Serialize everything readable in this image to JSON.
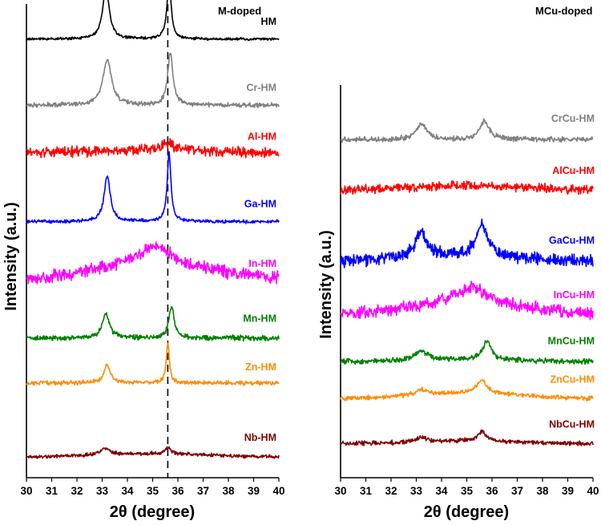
{
  "chart_data": [
    {
      "type": "line",
      "title": "M-doped",
      "xlabel": "2θ (degree)",
      "ylabel": "Intensity (a.u.)",
      "xlim": [
        30,
        40
      ],
      "x_ticks": [
        30,
        31,
        32,
        33,
        34,
        35,
        36,
        37,
        38,
        39,
        40
      ],
      "reference_line_x": 35.6,
      "grid": false,
      "series": [
        {
          "name": "HM",
          "color": "#000000",
          "offset": 8.2,
          "peaks": [
            {
              "x": 33.15,
              "height": 0.95,
              "width": 0.32
            },
            {
              "x": 35.65,
              "height": 1.1,
              "width": 0.2
            }
          ],
          "hump": 0,
          "noise": 0.03
        },
        {
          "name": "Cr-HM",
          "color": "#808080",
          "offset": 6.95,
          "peaks": [
            {
              "x": 33.2,
              "height": 0.85,
              "width": 0.42
            },
            {
              "x": 35.7,
              "height": 1.0,
              "width": 0.25
            }
          ],
          "hump": 0,
          "noise": 0.05
        },
        {
          "name": "Al-HM",
          "color": "#ff0000",
          "offset": 6.05,
          "peaks": [
            {
              "x": 35.6,
              "height": 0.15,
              "width": 0.6
            }
          ],
          "hump": 0.05,
          "noise": 0.12
        },
        {
          "name": "Ga-HM",
          "color": "#0000ff",
          "offset": 4.75,
          "peaks": [
            {
              "x": 33.2,
              "height": 0.85,
              "width": 0.3
            },
            {
              "x": 35.65,
              "height": 1.3,
              "width": 0.18
            }
          ],
          "hump": 0,
          "noise": 0.04
        },
        {
          "name": "In-HM",
          "color": "#ff00ff",
          "offset": 3.65,
          "peaks": [
            {
              "x": 35.1,
              "height": 0.35,
              "width": 1.4
            }
          ],
          "hump": 0.3,
          "noise": 0.14
        },
        {
          "name": "Mn-HM",
          "color": "#008000",
          "offset": 2.55,
          "peaks": [
            {
              "x": 33.15,
              "height": 0.45,
              "width": 0.35
            },
            {
              "x": 35.75,
              "height": 0.6,
              "width": 0.25
            }
          ],
          "hump": 0,
          "noise": 0.06
        },
        {
          "name": "Zn-HM",
          "color": "#ff8c00",
          "offset": 1.7,
          "peaks": [
            {
              "x": 33.2,
              "height": 0.35,
              "width": 0.3
            },
            {
              "x": 35.6,
              "height": 0.75,
              "width": 0.15
            }
          ],
          "hump": 0,
          "noise": 0.05
        },
        {
          "name": "Nb-HM",
          "color": "#800000",
          "offset": 0.3,
          "peaks": [
            {
              "x": 33.1,
              "height": 0.12,
              "width": 0.5
            },
            {
              "x": 35.6,
              "height": 0.12,
              "width": 0.3
            }
          ],
          "hump": 0.06,
          "noise": 0.04
        }
      ]
    },
    {
      "type": "line",
      "title": "MCu-doped",
      "xlabel": "2θ (degree)",
      "ylabel": "Intensity (a.u.)",
      "xlim": [
        30,
        40
      ],
      "x_ticks": [
        30,
        31,
        32,
        33,
        34,
        35,
        36,
        37,
        38,
        39,
        40
      ],
      "grid": false,
      "series": [
        {
          "name": "CrCu-HM",
          "color": "#808080",
          "offset": 6.3,
          "peaks": [
            {
              "x": 33.2,
              "height": 0.3,
              "width": 0.5
            },
            {
              "x": 35.7,
              "height": 0.35,
              "width": 0.45
            }
          ],
          "hump": 0,
          "noise": 0.06
        },
        {
          "name": "AlCu-HM",
          "color": "#ff0000",
          "offset": 5.35,
          "peaks": [],
          "hump": 0.08,
          "noise": 0.1
        },
        {
          "name": "GaCu-HM",
          "color": "#0000ff",
          "offset": 4.0,
          "peaks": [
            {
              "x": 33.2,
              "height": 0.45,
              "width": 0.6
            },
            {
              "x": 35.6,
              "height": 0.6,
              "width": 0.55
            }
          ],
          "hump": 0.1,
          "noise": 0.14
        },
        {
          "name": "InCu-HM",
          "color": "#ff00ff",
          "offset": 3.0,
          "peaks": [
            {
              "x": 35.2,
              "height": 0.3,
              "width": 1.5
            }
          ],
          "hump": 0.2,
          "noise": 0.14
        },
        {
          "name": "MnCu-HM",
          "color": "#008000",
          "offset": 2.1,
          "peaks": [
            {
              "x": 33.2,
              "height": 0.18,
              "width": 0.6
            },
            {
              "x": 35.8,
              "height": 0.35,
              "width": 0.4
            }
          ],
          "hump": 0.04,
          "noise": 0.06
        },
        {
          "name": "ZnCu-HM",
          "color": "#ff8c00",
          "offset": 1.4,
          "peaks": [
            {
              "x": 33.2,
              "height": 0.1,
              "width": 0.6
            },
            {
              "x": 35.6,
              "height": 0.25,
              "width": 0.5
            }
          ],
          "hump": 0.1,
          "noise": 0.05
        },
        {
          "name": "NbCu-HM",
          "color": "#800000",
          "offset": 0.55,
          "peaks": [
            {
              "x": 33.2,
              "height": 0.08,
              "width": 0.6
            },
            {
              "x": 35.6,
              "height": 0.18,
              "width": 0.4
            }
          ],
          "hump": 0.05,
          "noise": 0.05
        }
      ]
    }
  ]
}
